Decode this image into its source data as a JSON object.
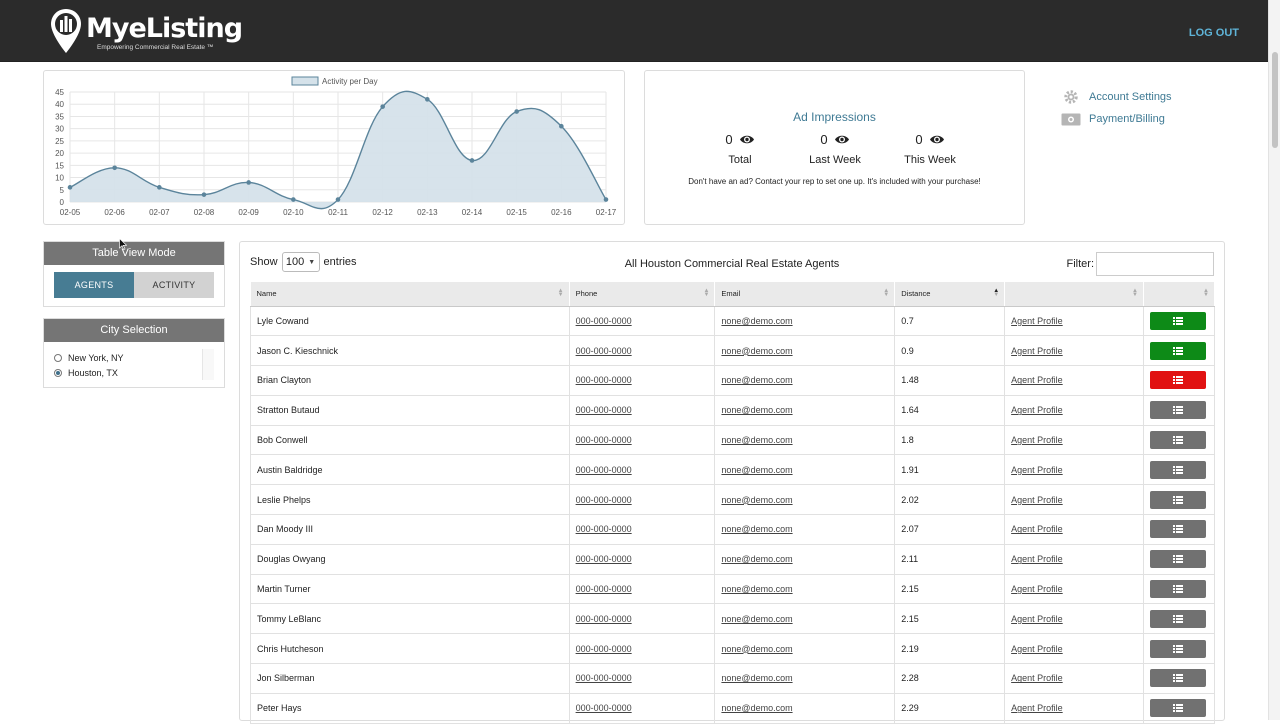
{
  "header": {
    "brand": "MyeListing",
    "tagline": "Empowering Commercial Real Estate ™",
    "logout_label": "LOG OUT"
  },
  "activity_chart": {
    "legend_label": "Activity per Day"
  },
  "chart_data": {
    "type": "area",
    "title": "",
    "series": [
      {
        "name": "Activity per Day",
        "values": [
          6,
          14,
          6,
          3,
          8,
          1,
          1,
          39,
          42,
          17,
          37,
          31,
          1
        ]
      }
    ],
    "categories": [
      "02-05",
      "02-06",
      "02-07",
      "02-08",
      "02-09",
      "02-10",
      "02-11",
      "02-12",
      "02-13",
      "02-14",
      "02-15",
      "02-16",
      "02-17"
    ],
    "yticks": [
      0,
      5,
      10,
      15,
      20,
      25,
      30,
      35,
      40,
      45
    ],
    "ylim": [
      0,
      45
    ],
    "legend": "top-center",
    "grid": true,
    "colors": {
      "line": "#5b849b",
      "fill": "#d5e2ea"
    }
  },
  "impressions": {
    "title": "Ad Impressions",
    "stats": [
      {
        "value": "0",
        "label": "Total"
      },
      {
        "value": "0",
        "label": "Last Week"
      },
      {
        "value": "0",
        "label": "This Week"
      }
    ],
    "note": "Don't have an ad? Contact your rep to set one up. It's included with your purchase!"
  },
  "side_links": {
    "account_settings": "Account Settings",
    "payment_billing": "Payment/Billing"
  },
  "table_view": {
    "title": "Table View Mode",
    "agents_label": "AGENTS",
    "activity_label": "ACTIVITY",
    "active": "AGENTS"
  },
  "city_selection": {
    "title": "City Selection",
    "options": [
      "New York, NY",
      "Houston, TX"
    ],
    "selected": "Houston, TX"
  },
  "table": {
    "show_label": "Show",
    "entries_value": "100",
    "entries_label": "entries",
    "title": "All Houston Commercial Real Estate Agents",
    "filter_label": "Filter:",
    "filter_value": "",
    "columns": [
      "Name",
      "Phone",
      "Email",
      "Distance",
      "",
      ""
    ],
    "sorted_column": "Distance",
    "rows": [
      {
        "name": "Lyle Cowand",
        "phone": "000-000-0000",
        "email": "none@demo.com",
        "distance": "0.7",
        "profile": "Agent Profile",
        "status": "green"
      },
      {
        "name": "Jason C. Kieschnick",
        "phone": "000-000-0000",
        "email": "none@demo.com",
        "distance": "0.9",
        "profile": "Agent Profile",
        "status": "green"
      },
      {
        "name": "Brian Clayton",
        "phone": "000-000-0000",
        "email": "none@demo.com",
        "distance": "1.48",
        "profile": "Agent Profile",
        "status": "red"
      },
      {
        "name": "Stratton Butaud",
        "phone": "000-000-0000",
        "email": "none@demo.com",
        "distance": "1.64",
        "profile": "Agent Profile",
        "status": "gray"
      },
      {
        "name": "Bob Conwell",
        "phone": "000-000-0000",
        "email": "none@demo.com",
        "distance": "1.8",
        "profile": "Agent Profile",
        "status": "gray"
      },
      {
        "name": "Austin Baldridge",
        "phone": "000-000-0000",
        "email": "none@demo.com",
        "distance": "1.91",
        "profile": "Agent Profile",
        "status": "gray"
      },
      {
        "name": "Leslie Phelps",
        "phone": "000-000-0000",
        "email": "none@demo.com",
        "distance": "2.02",
        "profile": "Agent Profile",
        "status": "gray"
      },
      {
        "name": "Dan Moody III",
        "phone": "000-000-0000",
        "email": "none@demo.com",
        "distance": "2.07",
        "profile": "Agent Profile",
        "status": "gray"
      },
      {
        "name": "Douglas Owyang",
        "phone": "000-000-0000",
        "email": "none@demo.com",
        "distance": "2.11",
        "profile": "Agent Profile",
        "status": "gray"
      },
      {
        "name": "Martin Turner",
        "phone": "000-000-0000",
        "email": "none@demo.com",
        "distance": "2.15",
        "profile": "Agent Profile",
        "status": "gray"
      },
      {
        "name": "Tommy LeBlanc",
        "phone": "000-000-0000",
        "email": "none@demo.com",
        "distance": "2.15",
        "profile": "Agent Profile",
        "status": "gray"
      },
      {
        "name": "Chris Hutcheson",
        "phone": "000-000-0000",
        "email": "none@demo.com",
        "distance": "2.19",
        "profile": "Agent Profile",
        "status": "gray"
      },
      {
        "name": "Jon Silberman",
        "phone": "000-000-0000",
        "email": "none@demo.com",
        "distance": "2.28",
        "profile": "Agent Profile",
        "status": "gray"
      },
      {
        "name": "Peter Hays",
        "phone": "000-000-0000",
        "email": "none@demo.com",
        "distance": "2.29",
        "profile": "Agent Profile",
        "status": "gray"
      }
    ]
  }
}
